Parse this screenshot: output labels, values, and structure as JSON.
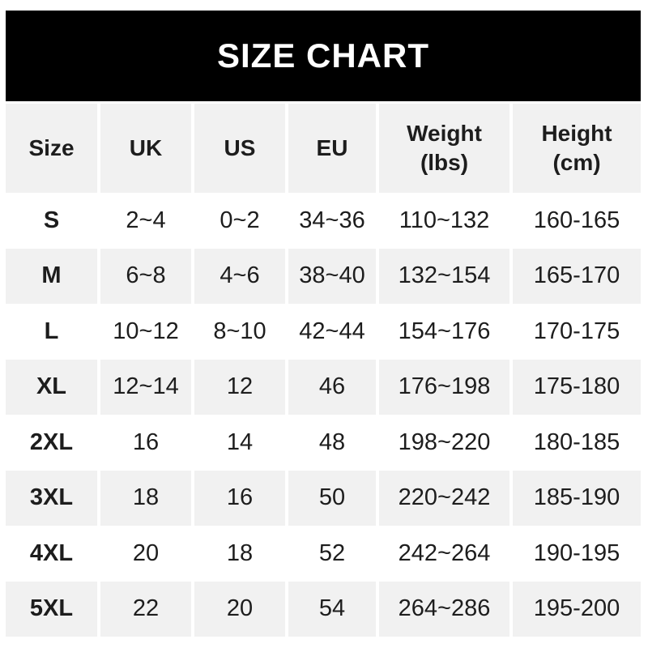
{
  "chart_data": {
    "type": "table",
    "title": "SIZE CHART",
    "headers": [
      {
        "line1": "Size",
        "line2": ""
      },
      {
        "line1": "UK",
        "line2": ""
      },
      {
        "line1": "US",
        "line2": ""
      },
      {
        "line1": "EU",
        "line2": ""
      },
      {
        "line1": "Weight",
        "line2": "(lbs)"
      },
      {
        "line1": "Height",
        "line2": "(cm)"
      }
    ],
    "rows": [
      {
        "size": "S",
        "uk": "2~4",
        "us": "0~2",
        "eu": "34~36",
        "weight": "110~132",
        "height": "160-165"
      },
      {
        "size": "M",
        "uk": "6~8",
        "us": "4~6",
        "eu": "38~40",
        "weight": "132~154",
        "height": "165-170"
      },
      {
        "size": "L",
        "uk": "10~12",
        "us": "8~10",
        "eu": "42~44",
        "weight": "154~176",
        "height": "170-175"
      },
      {
        "size": "XL",
        "uk": "12~14",
        "us": "12",
        "eu": "46",
        "weight": "176~198",
        "height": "175-180"
      },
      {
        "size": "2XL",
        "uk": "16",
        "us": "14",
        "eu": "48",
        "weight": "198~220",
        "height": "180-185"
      },
      {
        "size": "3XL",
        "uk": "18",
        "us": "16",
        "eu": "50",
        "weight": "220~242",
        "height": "185-190"
      },
      {
        "size": "4XL",
        "uk": "20",
        "us": "18",
        "eu": "52",
        "weight": "242~264",
        "height": "190-195"
      },
      {
        "size": "5XL",
        "uk": "22",
        "us": "20",
        "eu": "54",
        "weight": "264~286",
        "height": "195-200"
      }
    ]
  },
  "colors": {
    "banner_bg": "#000000",
    "banner_text": "#ffffff",
    "row_alt_bg": "#f1f1f1",
    "row_bg": "#ffffff",
    "text": "#1d1d1d"
  }
}
